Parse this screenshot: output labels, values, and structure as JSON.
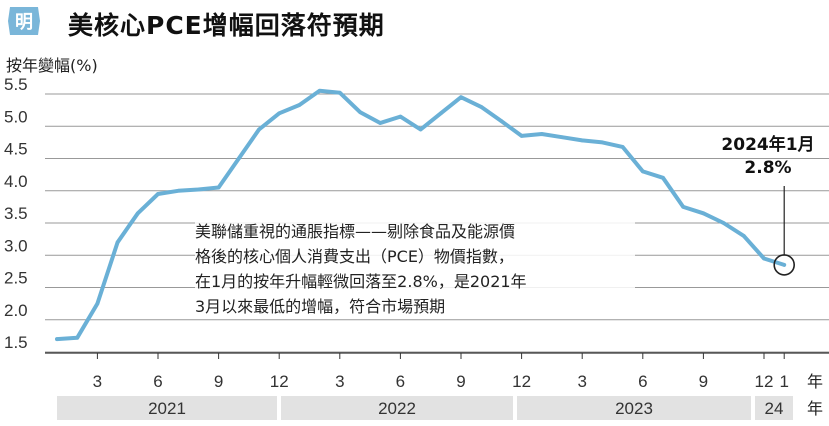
{
  "header": {
    "logo_text": "明",
    "title": "美核心PCE增幅回落符預期"
  },
  "colors": {
    "line": "#6ab0d6",
    "band": "#e2e2e2",
    "logo": "#7ab6d9",
    "grid": "#999999"
  },
  "chart_data": {
    "type": "line",
    "title": "美核心PCE增幅回落符預期",
    "ylabel": "按年變幅(%)",
    "xlabel": "年",
    "ylim": [
      1.5,
      5.5
    ],
    "yticks": [
      "1.5",
      "2.0",
      "2.5",
      "3.0",
      "3.5",
      "4.0",
      "4.5",
      "5.0",
      "5.5"
    ],
    "grid": true,
    "x_month_ticks": [
      "3",
      "6",
      "9",
      "12",
      "3",
      "6",
      "9",
      "12",
      "3",
      "6",
      "9",
      "12",
      "1"
    ],
    "x_years": [
      "2021",
      "2022",
      "2023",
      "24"
    ],
    "series": [
      {
        "x": [
          "2021-01",
          "2021-02",
          "2021-03",
          "2021-04",
          "2021-05",
          "2021-06",
          "2021-07",
          "2021-08",
          "2021-09",
          "2021-10",
          "2021-11",
          "2021-12",
          "2022-01",
          "2022-02",
          "2022-03",
          "2022-04",
          "2022-05",
          "2022-06",
          "2022-07",
          "2022-08",
          "2022-09",
          "2022-10",
          "2022-11",
          "2022-12",
          "2023-01",
          "2023-02",
          "2023-03",
          "2023-04",
          "2023-05",
          "2023-06",
          "2023-07",
          "2023-08",
          "2023-09",
          "2023-10",
          "2023-11",
          "2023-12",
          "2024-01"
        ],
        "values": [
          1.7,
          1.72,
          2.25,
          3.2,
          3.65,
          3.95,
          4.0,
          4.02,
          4.05,
          4.5,
          4.95,
          5.2,
          5.33,
          5.55,
          5.52,
          5.22,
          5.05,
          5.15,
          4.95,
          5.2,
          5.45,
          5.3,
          5.08,
          4.85,
          4.88,
          4.83,
          4.78,
          4.75,
          4.68,
          4.3,
          4.2,
          3.75,
          3.65,
          3.5,
          3.3,
          2.95,
          2.85
        ]
      }
    ],
    "callout": {
      "line1": "2024年1月",
      "line2": "2.8%"
    },
    "annotation": [
      "美聯儲重視的通脹指標——剔除食品及能源價",
      "格後的核心個人消費支出（PCE）物價指數，",
      "在1月的按年升幅輕微回落至2.8%，是2021年",
      "3月以來最低的增幅，符合市場預期"
    ]
  }
}
